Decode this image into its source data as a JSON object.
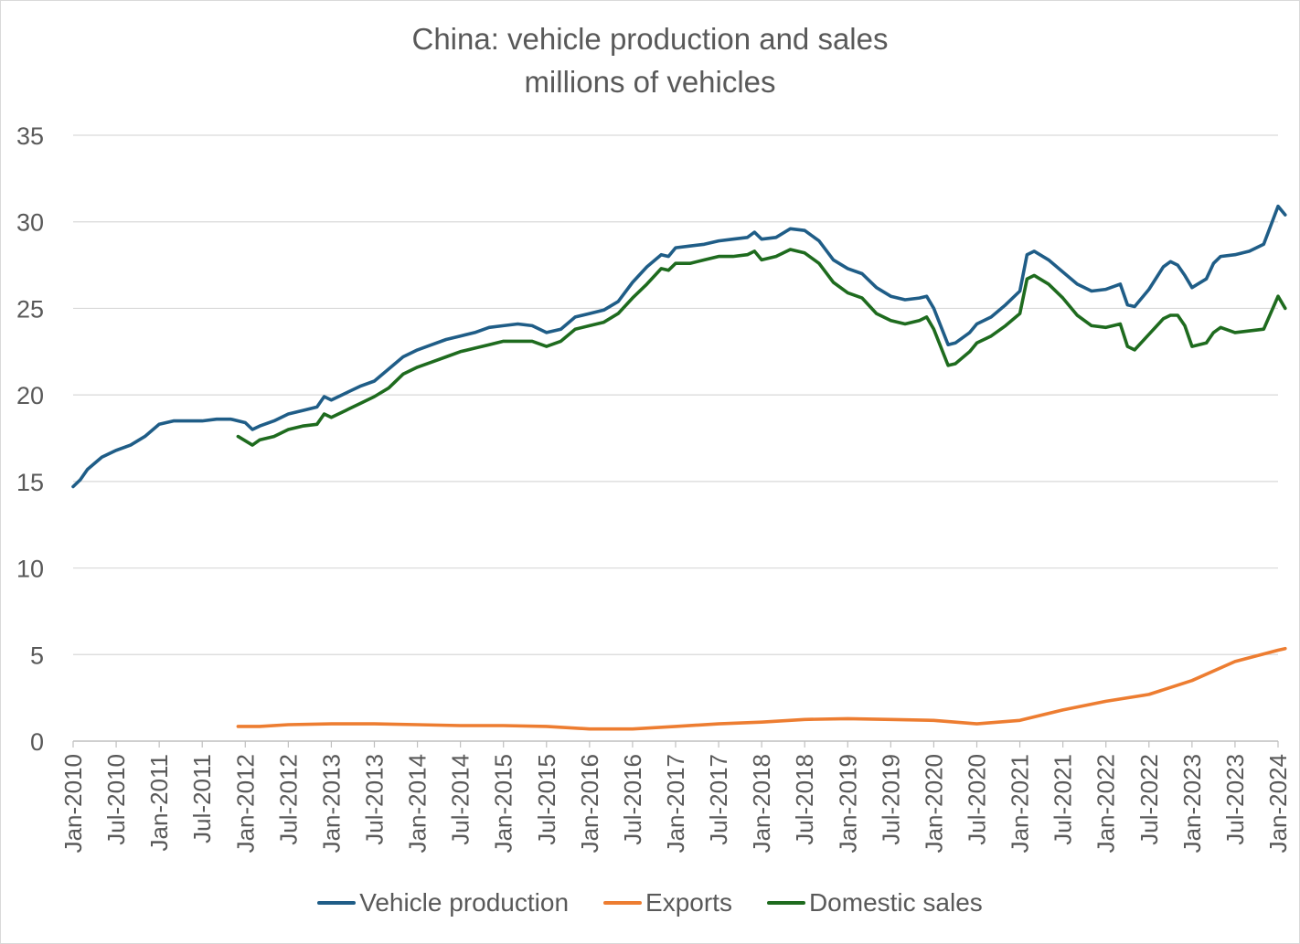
{
  "chart_data": {
    "type": "line",
    "title": "China: vehicle production and sales",
    "subtitle": "millions of vehicles",
    "xlabel": "",
    "ylabel": "",
    "ylim": [
      0,
      35
    ],
    "yticks": [
      0,
      5,
      10,
      15,
      20,
      25,
      30,
      35
    ],
    "grid": true,
    "legend_position": "bottom",
    "x_tick_labels": [
      "Jan-2010",
      "Jul-2010",
      "Jan-2011",
      "Jul-2011",
      "Jan-2012",
      "Jul-2012",
      "Jan-2013",
      "Jul-2013",
      "Jan-2014",
      "Jul-2014",
      "Jan-2015",
      "Jul-2015",
      "Jan-2016",
      "Jul-2016",
      "Jan-2017",
      "Jul-2017",
      "Jan-2018",
      "Jul-2018",
      "Jan-2019",
      "Jul-2019",
      "Jan-2020",
      "Jul-2020",
      "Jan-2021",
      "Jul-2021",
      "Jan-2022",
      "Jul-2022",
      "Jan-2023",
      "Jul-2023",
      "Jan-2024"
    ],
    "x_start": "Jan-2010",
    "x_end": "Jan-2024",
    "series": [
      {
        "name": "Vehicle production",
        "color": "#1f5d87",
        "points": [
          [
            "Jan-2010",
            14.7
          ],
          [
            "Feb-2010",
            15.1
          ],
          [
            "Mar-2010",
            15.7
          ],
          [
            "May-2010",
            16.4
          ],
          [
            "Jul-2010",
            16.8
          ],
          [
            "Sep-2010",
            17.1
          ],
          [
            "Nov-2010",
            17.6
          ],
          [
            "Jan-2011",
            18.3
          ],
          [
            "Mar-2011",
            18.5
          ],
          [
            "May-2011",
            18.5
          ],
          [
            "Jul-2011",
            18.5
          ],
          [
            "Sep-2011",
            18.6
          ],
          [
            "Nov-2011",
            18.6
          ],
          [
            "Jan-2012",
            18.4
          ],
          [
            "Feb-2012",
            18.0
          ],
          [
            "Mar-2012",
            18.2
          ],
          [
            "May-2012",
            18.5
          ],
          [
            "Jul-2012",
            18.9
          ],
          [
            "Sep-2012",
            19.1
          ],
          [
            "Nov-2012",
            19.3
          ],
          [
            "Dec-2012",
            19.9
          ],
          [
            "Jan-2013",
            19.7
          ],
          [
            "Mar-2013",
            20.1
          ],
          [
            "May-2013",
            20.5
          ],
          [
            "Jul-2013",
            20.8
          ],
          [
            "Sep-2013",
            21.5
          ],
          [
            "Nov-2013",
            22.2
          ],
          [
            "Jan-2014",
            22.6
          ],
          [
            "Mar-2014",
            22.9
          ],
          [
            "May-2014",
            23.2
          ],
          [
            "Jul-2014",
            23.4
          ],
          [
            "Sep-2014",
            23.6
          ],
          [
            "Nov-2014",
            23.9
          ],
          [
            "Jan-2015",
            24.0
          ],
          [
            "Mar-2015",
            24.1
          ],
          [
            "May-2015",
            24.0
          ],
          [
            "Jul-2015",
            23.6
          ],
          [
            "Sep-2015",
            23.8
          ],
          [
            "Nov-2015",
            24.5
          ],
          [
            "Jan-2016",
            24.7
          ],
          [
            "Mar-2016",
            24.9
          ],
          [
            "May-2016",
            25.4
          ],
          [
            "Jul-2016",
            26.5
          ],
          [
            "Sep-2016",
            27.4
          ],
          [
            "Nov-2016",
            28.1
          ],
          [
            "Dec-2016",
            28.0
          ],
          [
            "Jan-2017",
            28.5
          ],
          [
            "Mar-2017",
            28.6
          ],
          [
            "May-2017",
            28.7
          ],
          [
            "Jul-2017",
            28.9
          ],
          [
            "Sep-2017",
            29.0
          ],
          [
            "Nov-2017",
            29.1
          ],
          [
            "Dec-2017",
            29.4
          ],
          [
            "Jan-2018",
            29.0
          ],
          [
            "Mar-2018",
            29.1
          ],
          [
            "May-2018",
            29.6
          ],
          [
            "Jul-2018",
            29.5
          ],
          [
            "Sep-2018",
            28.9
          ],
          [
            "Nov-2018",
            27.8
          ],
          [
            "Jan-2019",
            27.3
          ],
          [
            "Mar-2019",
            27.0
          ],
          [
            "May-2019",
            26.2
          ],
          [
            "Jul-2019",
            25.7
          ],
          [
            "Sep-2019",
            25.5
          ],
          [
            "Nov-2019",
            25.6
          ],
          [
            "Dec-2019",
            25.7
          ],
          [
            "Jan-2020",
            25.0
          ],
          [
            "Mar-2020",
            22.9
          ],
          [
            "Apr-2020",
            23.0
          ],
          [
            "Jun-2020",
            23.6
          ],
          [
            "Jul-2020",
            24.1
          ],
          [
            "Sep-2020",
            24.5
          ],
          [
            "Nov-2020",
            25.2
          ],
          [
            "Jan-2021",
            26.0
          ],
          [
            "Feb-2021",
            28.1
          ],
          [
            "Mar-2021",
            28.3
          ],
          [
            "May-2021",
            27.8
          ],
          [
            "Jul-2021",
            27.1
          ],
          [
            "Sep-2021",
            26.4
          ],
          [
            "Nov-2021",
            26.0
          ],
          [
            "Jan-2022",
            26.1
          ],
          [
            "Mar-2022",
            26.4
          ],
          [
            "Apr-2022",
            25.2
          ],
          [
            "May-2022",
            25.1
          ],
          [
            "Jul-2022",
            26.1
          ],
          [
            "Sep-2022",
            27.4
          ],
          [
            "Oct-2022",
            27.7
          ],
          [
            "Nov-2022",
            27.5
          ],
          [
            "Dec-2022",
            26.9
          ],
          [
            "Jan-2023",
            26.2
          ],
          [
            "Mar-2023",
            26.7
          ],
          [
            "Apr-2023",
            27.6
          ],
          [
            "May-2023",
            28.0
          ],
          [
            "Jul-2023",
            28.1
          ],
          [
            "Sep-2023",
            28.3
          ],
          [
            "Nov-2023",
            28.7
          ],
          [
            "Jan-2024",
            30.9
          ],
          [
            "Feb-2024",
            30.4
          ]
        ]
      },
      {
        "name": "Exports",
        "color": "#ed7d31",
        "points": [
          [
            "Dec-2011",
            0.85
          ],
          [
            "Mar-2012",
            0.85
          ],
          [
            "Jul-2012",
            0.95
          ],
          [
            "Jan-2013",
            1.0
          ],
          [
            "Jul-2013",
            1.0
          ],
          [
            "Jan-2014",
            0.95
          ],
          [
            "Jul-2014",
            0.9
          ],
          [
            "Jan-2015",
            0.9
          ],
          [
            "Jul-2015",
            0.85
          ],
          [
            "Jan-2016",
            0.7
          ],
          [
            "Jul-2016",
            0.7
          ],
          [
            "Jan-2017",
            0.85
          ],
          [
            "Jul-2017",
            1.0
          ],
          [
            "Jan-2018",
            1.1
          ],
          [
            "Jul-2018",
            1.25
          ],
          [
            "Jan-2019",
            1.3
          ],
          [
            "Jul-2019",
            1.25
          ],
          [
            "Jan-2020",
            1.2
          ],
          [
            "Jul-2020",
            1.0
          ],
          [
            "Jan-2021",
            1.2
          ],
          [
            "Jul-2021",
            1.8
          ],
          [
            "Jan-2022",
            2.3
          ],
          [
            "Jul-2022",
            2.7
          ],
          [
            "Jan-2023",
            3.5
          ],
          [
            "Jul-2023",
            4.6
          ],
          [
            "Jan-2024",
            5.25
          ],
          [
            "Feb-2024",
            5.35
          ]
        ]
      },
      {
        "name": "Domestic sales",
        "color": "#1e6b1e",
        "points": [
          [
            "Dec-2011",
            17.6
          ],
          [
            "Feb-2012",
            17.1
          ],
          [
            "Mar-2012",
            17.4
          ],
          [
            "May-2012",
            17.6
          ],
          [
            "Jul-2012",
            18.0
          ],
          [
            "Sep-2012",
            18.2
          ],
          [
            "Nov-2012",
            18.3
          ],
          [
            "Dec-2012",
            18.9
          ],
          [
            "Jan-2013",
            18.7
          ],
          [
            "Mar-2013",
            19.1
          ],
          [
            "May-2013",
            19.5
          ],
          [
            "Jul-2013",
            19.9
          ],
          [
            "Sep-2013",
            20.4
          ],
          [
            "Nov-2013",
            21.2
          ],
          [
            "Jan-2014",
            21.6
          ],
          [
            "Mar-2014",
            21.9
          ],
          [
            "May-2014",
            22.2
          ],
          [
            "Jul-2014",
            22.5
          ],
          [
            "Sep-2014",
            22.7
          ],
          [
            "Nov-2014",
            22.9
          ],
          [
            "Jan-2015",
            23.1
          ],
          [
            "Mar-2015",
            23.1
          ],
          [
            "May-2015",
            23.1
          ],
          [
            "Jul-2015",
            22.8
          ],
          [
            "Sep-2015",
            23.1
          ],
          [
            "Nov-2015",
            23.8
          ],
          [
            "Jan-2016",
            24.0
          ],
          [
            "Mar-2016",
            24.2
          ],
          [
            "May-2016",
            24.7
          ],
          [
            "Jul-2016",
            25.6
          ],
          [
            "Sep-2016",
            26.4
          ],
          [
            "Nov-2016",
            27.3
          ],
          [
            "Dec-2016",
            27.2
          ],
          [
            "Jan-2017",
            27.6
          ],
          [
            "Mar-2017",
            27.6
          ],
          [
            "May-2017",
            27.8
          ],
          [
            "Jul-2017",
            28.0
          ],
          [
            "Sep-2017",
            28.0
          ],
          [
            "Nov-2017",
            28.1
          ],
          [
            "Dec-2017",
            28.3
          ],
          [
            "Jan-2018",
            27.8
          ],
          [
            "Mar-2018",
            28.0
          ],
          [
            "May-2018",
            28.4
          ],
          [
            "Jul-2018",
            28.2
          ],
          [
            "Sep-2018",
            27.6
          ],
          [
            "Nov-2018",
            26.5
          ],
          [
            "Jan-2019",
            25.9
          ],
          [
            "Mar-2019",
            25.6
          ],
          [
            "May-2019",
            24.7
          ],
          [
            "Jul-2019",
            24.3
          ],
          [
            "Sep-2019",
            24.1
          ],
          [
            "Nov-2019",
            24.3
          ],
          [
            "Dec-2019",
            24.5
          ],
          [
            "Jan-2020",
            23.8
          ],
          [
            "Mar-2020",
            21.7
          ],
          [
            "Apr-2020",
            21.8
          ],
          [
            "Jun-2020",
            22.5
          ],
          [
            "Jul-2020",
            23.0
          ],
          [
            "Sep-2020",
            23.4
          ],
          [
            "Nov-2020",
            24.0
          ],
          [
            "Jan-2021",
            24.7
          ],
          [
            "Feb-2021",
            26.7
          ],
          [
            "Mar-2021",
            26.9
          ],
          [
            "May-2021",
            26.4
          ],
          [
            "Jul-2021",
            25.6
          ],
          [
            "Sep-2021",
            24.6
          ],
          [
            "Nov-2021",
            24.0
          ],
          [
            "Jan-2022",
            23.9
          ],
          [
            "Mar-2022",
            24.1
          ],
          [
            "Apr-2022",
            22.8
          ],
          [
            "May-2022",
            22.6
          ],
          [
            "Jul-2022",
            23.5
          ],
          [
            "Sep-2022",
            24.4
          ],
          [
            "Oct-2022",
            24.6
          ],
          [
            "Nov-2022",
            24.6
          ],
          [
            "Dec-2022",
            24.0
          ],
          [
            "Jan-2023",
            22.8
          ],
          [
            "Mar-2023",
            23.0
          ],
          [
            "Apr-2023",
            23.6
          ],
          [
            "May-2023",
            23.9
          ],
          [
            "Jul-2023",
            23.6
          ],
          [
            "Sep-2023",
            23.7
          ],
          [
            "Nov-2023",
            23.8
          ],
          [
            "Jan-2024",
            25.7
          ],
          [
            "Feb-2024",
            25.0
          ]
        ]
      }
    ]
  }
}
